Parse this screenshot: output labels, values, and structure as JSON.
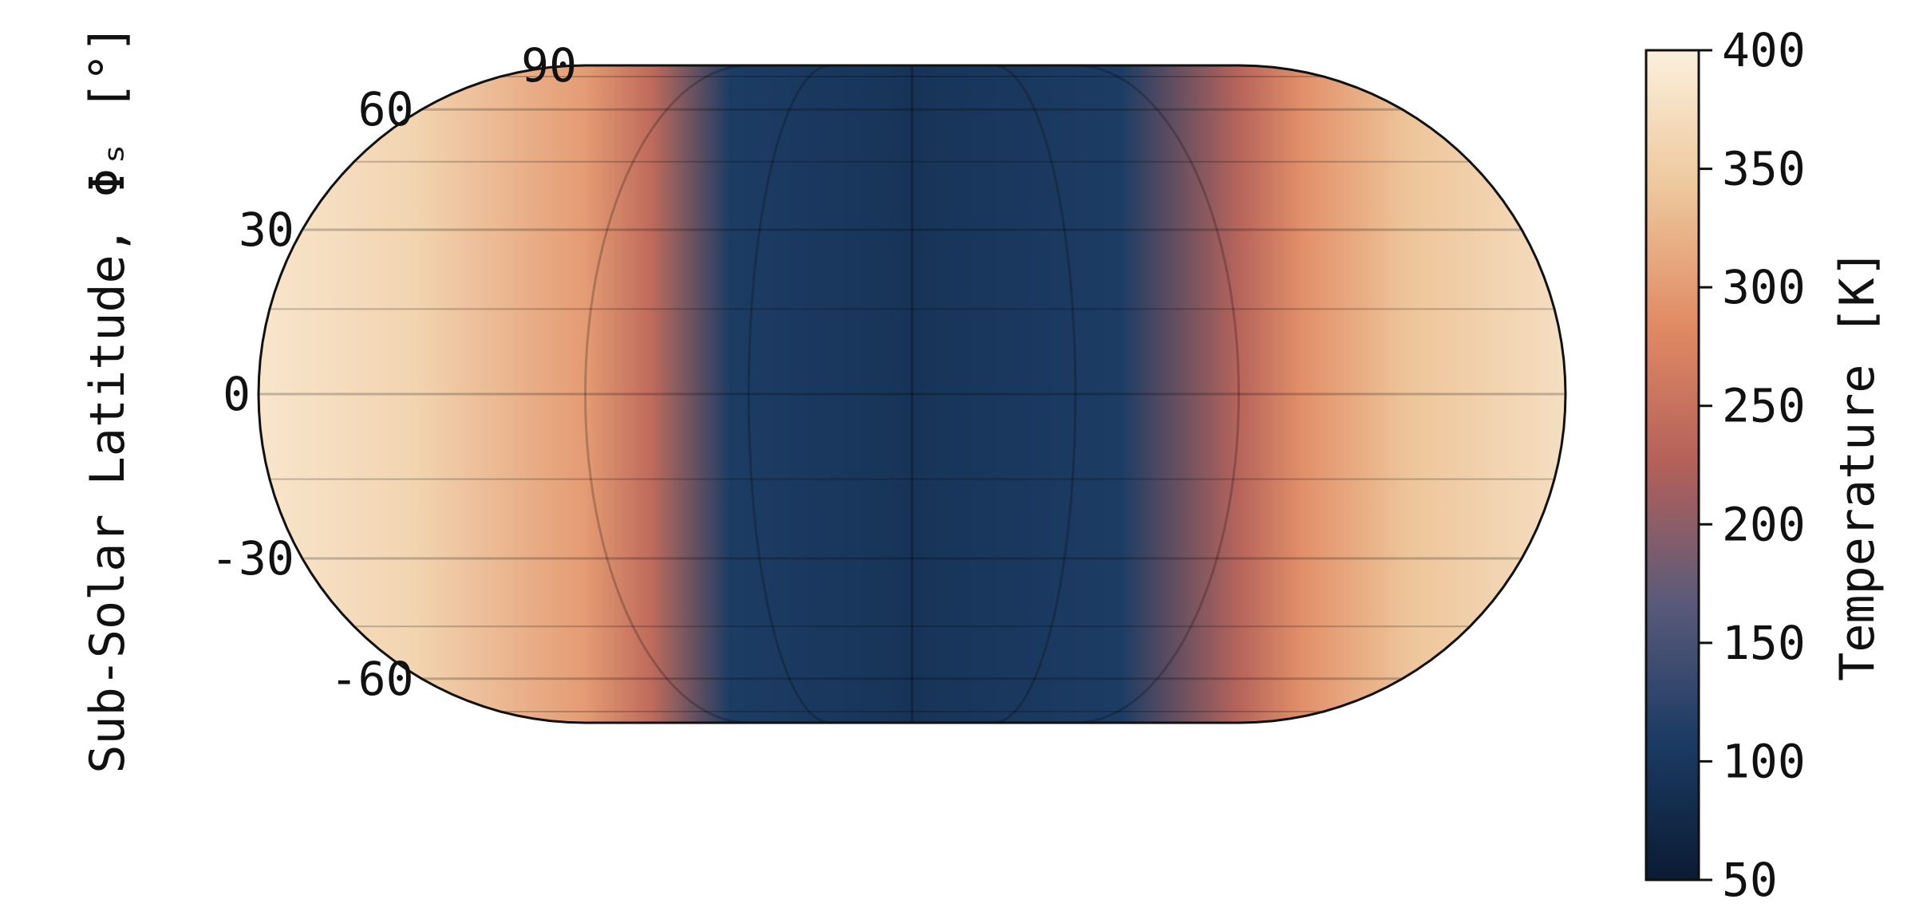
{
  "chart_data": {
    "type": "heatmap",
    "projection": "Eckert IV (equal-area pseudocylindrical)",
    "ylabel": "Sub-Solar Latitude, Φₛ [°]",
    "lat_ticks": [
      "90",
      "60",
      "30",
      "0",
      "-30",
      "-60"
    ],
    "lat_values": [
      90,
      60,
      30,
      0,
      -30,
      -60
    ],
    "colorbar": {
      "label": "Temperature [K]",
      "min": 50,
      "max": 400,
      "ticks": [
        "400",
        "350",
        "300",
        "250",
        "200",
        "150",
        "100",
        "50"
      ],
      "tick_values": [
        400,
        350,
        300,
        250,
        200,
        150,
        100,
        50
      ],
      "colormap": [
        "#0b1b33",
        "#1b3b63",
        "#5a5a7a",
        "#b3605a",
        "#e08a63",
        "#eec79c",
        "#fbf0dc"
      ]
    },
    "temperature_profile_by_longitude": {
      "x_fraction": [
        0.0,
        0.12,
        0.25,
        0.3,
        0.36,
        0.5,
        0.66,
        0.75,
        0.8,
        0.88,
        1.0
      ],
      "temperature_K": [
        385,
        360,
        300,
        240,
        110,
        95,
        110,
        230,
        290,
        340,
        375
      ]
    },
    "grid": true
  }
}
